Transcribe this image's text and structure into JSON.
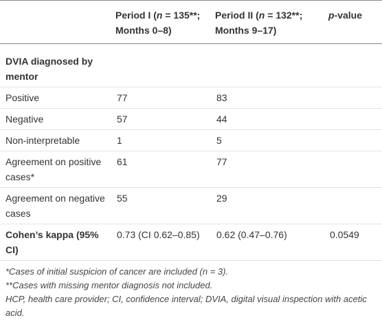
{
  "table": {
    "columns": [
      {
        "key": "period1",
        "segments": [
          {
            "text": "Period I ("
          },
          {
            "text": "n",
            "italic": true
          },
          {
            "text": " = 135**; Months 0–8)"
          }
        ]
      },
      {
        "key": "period2",
        "segments": [
          {
            "text": "Period II ("
          },
          {
            "text": "n",
            "italic": true
          },
          {
            "text": " = 132**; Months 9–17)"
          }
        ]
      },
      {
        "key": "p_value",
        "segments": [
          {
            "text": "p",
            "italic": true
          },
          {
            "text": "-value"
          }
        ]
      }
    ],
    "rows": [
      {
        "label": "DVIA diagnosed by mentor",
        "bold": true
      },
      {
        "label": "Positive",
        "period1": "77",
        "period2": "83"
      },
      {
        "label": "Negative",
        "period1": "57",
        "period2": "44"
      },
      {
        "label": "Non-interpretable",
        "period1": "1",
        "period2": "5"
      },
      {
        "label": "Agreement on positive cases*",
        "period1": "61",
        "period2": "77"
      },
      {
        "label": "Agreement on negative cases",
        "period1": "55",
        "period2": "29"
      },
      {
        "label": "Cohen’s kappa (95% CI)",
        "bold": true,
        "period1": "0.73 (CI 0.62–0.85)",
        "period2": "0.62 (0.47–0.76)",
        "p_value": "0.0549"
      }
    ]
  },
  "footnotes": [
    "*Cases of initial suspicion of cancer are included (n = 3).",
    "**Cases with missing mentor diagnosis not included.",
    "HCP, health care provider; CI, confidence interval; DVIA, digital visual inspection with acetic acid."
  ]
}
